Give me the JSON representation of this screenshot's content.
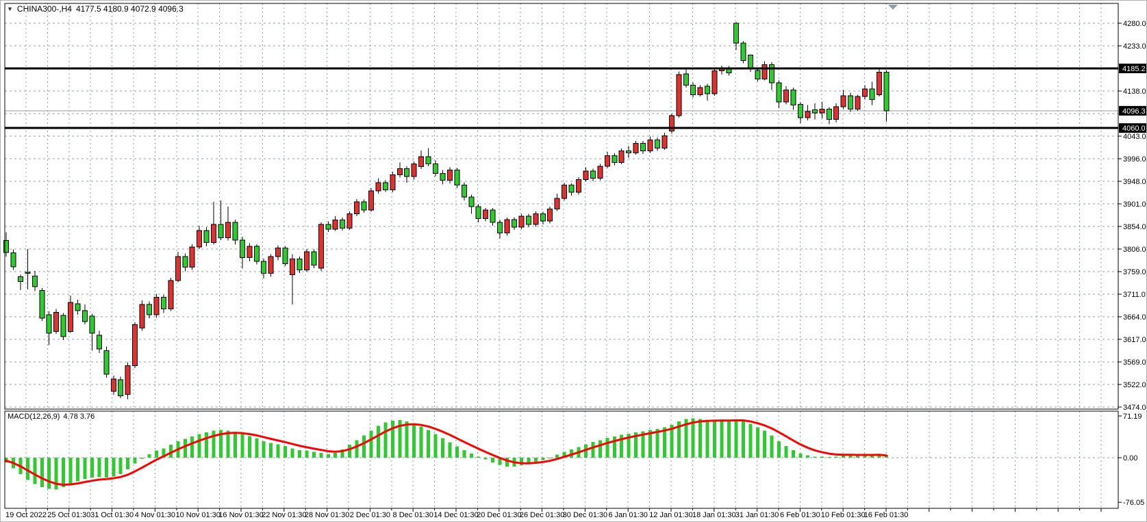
{
  "header": {
    "dropdown_icon": "▼",
    "symbol_period": "CHINA300-,H4",
    "ohlc": "4177.5 4180.9 4072.9 4096.3"
  },
  "macd_panel": {
    "label": "MACD(12,26,9)",
    "values": "4.78 3.76",
    "axis_labels": [
      "71.19",
      "0.00",
      "-76.05"
    ]
  },
  "price_axis": {
    "tick_labels": [
      [
        0,
        "4280.0"
      ],
      [
        1,
        "4233.0"
      ],
      [
        3,
        "4138.0"
      ],
      [
        5,
        "4043.0"
      ],
      [
        6,
        "3996.0"
      ],
      [
        7,
        "3948.0"
      ],
      [
        8,
        "3901.0"
      ],
      [
        9,
        "3854.0"
      ],
      [
        10,
        "3806.0"
      ],
      [
        11,
        "3759.0"
      ],
      [
        12,
        "3711.0"
      ],
      [
        13,
        "3664.0"
      ],
      [
        14,
        "3617.0"
      ],
      [
        15,
        "3569.0"
      ],
      [
        16,
        "3522.0"
      ],
      [
        17,
        "3474.0"
      ]
    ],
    "highlighted": [
      {
        "text": "4185.2",
        "price": 4185.2
      },
      {
        "text": "4096.3",
        "price": 4096.3
      },
      {
        "text": "4060.0",
        "price": 4060.0
      }
    ]
  },
  "time_axis": {
    "labels": [
      "19 Oct 2022",
      "25 Oct 01:30",
      "31 Oct 01:30",
      "4 Nov 01:30",
      "10 Nov 01:30",
      "16 Nov 01:30",
      "22 Nov 01:30",
      "28 Nov 01:30",
      "2 Dec 01:30",
      "8 Dec 01:30",
      "14 Dec 01:30",
      "20 Dec 01:30",
      "26 Dec 01:30",
      "30 Dec 01:30",
      "6 Jan 01:30",
      "12 Jan 01:30",
      "18 Jan 01:30",
      "31 Jan 01:30",
      "6 Feb 01:30",
      "10 Feb 01:30",
      "16 Feb 01:30"
    ]
  },
  "colors": {
    "bull_candle": "#e03131",
    "bear_candle": "#2ecb2e",
    "wick": "#000000",
    "grid": "#8c9cae",
    "signal_line": "#ff0000",
    "histogram": "#2ecb2e",
    "hline": "#000000",
    "current_price_line": "#9a9a9a",
    "label_box_bg": "#000000",
    "label_box_text": "#ffffff",
    "axis_text": "#000000",
    "panel_border": "#000000"
  },
  "chart_data": {
    "type": "candlestick+macd",
    "title": "CHINA300-,H4 4177.5 4180.9 4072.9 4096.3",
    "symbol": "CHINA300-",
    "timeframe": "H4",
    "note": "Chinese color convention: red body = up candle, green body = down candle",
    "price_axis_ticks": [
      4280.0,
      4233.0,
      4138.0,
      4043.0,
      3996.0,
      3948.0,
      3901.0,
      3854.0,
      3806.0,
      3759.0,
      3711.0,
      3664.0,
      3617.0,
      3569.0,
      3522.0,
      3474.0
    ],
    "horizontal_lines": [
      4185.2,
      4060.0
    ],
    "current_price": 4096.3,
    "last_candle_ohlc": [
      4177.5,
      4180.9,
      4072.9,
      4096.3
    ],
    "candles_ohlc": [
      [
        3824,
        3841,
        3790,
        3799
      ],
      [
        3798,
        3805,
        3762,
        3769
      ],
      [
        3748,
        3752,
        3720,
        3738
      ],
      [
        3757,
        3806,
        3721,
        3755
      ],
      [
        3749,
        3760,
        3718,
        3727
      ],
      [
        3719,
        3724,
        3655,
        3661
      ],
      [
        3668,
        3675,
        3604,
        3629
      ],
      [
        3633,
        3680,
        3628,
        3673
      ],
      [
        3667,
        3672,
        3615,
        3622
      ],
      [
        3633,
        3708,
        3630,
        3694
      ],
      [
        3691,
        3700,
        3668,
        3677
      ],
      [
        3677,
        3690,
        3648,
        3654
      ],
      [
        3665,
        3670,
        3593,
        3629
      ],
      [
        3625,
        3634,
        3588,
        3596
      ],
      [
        3593,
        3601,
        3536,
        3543
      ],
      [
        3507,
        3540,
        3500,
        3533
      ],
      [
        3532,
        3538,
        3493,
        3498
      ],
      [
        3501,
        3568,
        3491,
        3561
      ],
      [
        3561,
        3652,
        3556,
        3647
      ],
      [
        3640,
        3698,
        3634,
        3690
      ],
      [
        3690,
        3696,
        3660,
        3668
      ],
      [
        3668,
        3712,
        3662,
        3705
      ],
      [
        3705,
        3710,
        3672,
        3680
      ],
      [
        3680,
        3746,
        3676,
        3740
      ],
      [
        3740,
        3800,
        3736,
        3790
      ],
      [
        3790,
        3797,
        3759,
        3768
      ],
      [
        3768,
        3816,
        3762,
        3810
      ],
      [
        3810,
        3855,
        3806,
        3845
      ],
      [
        3845,
        3852,
        3812,
        3820
      ],
      [
        3820,
        3905,
        3815,
        3858
      ],
      [
        3858,
        3908,
        3825,
        3830
      ],
      [
        3830,
        3895,
        3824,
        3862
      ],
      [
        3862,
        3868,
        3815,
        3825
      ],
      [
        3825,
        3832,
        3765,
        3788
      ],
      [
        3788,
        3818,
        3780,
        3812
      ],
      [
        3812,
        3816,
        3774,
        3780
      ],
      [
        3780,
        3786,
        3744,
        3755
      ],
      [
        3755,
        3795,
        3748,
        3790
      ],
      [
        3790,
        3814,
        3782,
        3808
      ],
      [
        3808,
        3812,
        3770,
        3775
      ],
      [
        3752,
        3795,
        3690,
        3785
      ],
      [
        3785,
        3790,
        3756,
        3762
      ],
      [
        3762,
        3806,
        3758,
        3800
      ],
      [
        3800,
        3805,
        3766,
        3772
      ],
      [
        3766,
        3862,
        3760,
        3858
      ],
      [
        3858,
        3864,
        3842,
        3848
      ],
      [
        3848,
        3875,
        3844,
        3867
      ],
      [
        3867,
        3872,
        3845,
        3850
      ],
      [
        3850,
        3885,
        3846,
        3880
      ],
      [
        3880,
        3911,
        3875,
        3905
      ],
      [
        3905,
        3910,
        3882,
        3888
      ],
      [
        3888,
        3934,
        3884,
        3928
      ],
      [
        3928,
        3955,
        3922,
        3945
      ],
      [
        3945,
        3950,
        3926,
        3930
      ],
      [
        3930,
        3968,
        3925,
        3962
      ],
      [
        3962,
        3988,
        3956,
        3975
      ],
      [
        3975,
        3980,
        3945,
        3958
      ],
      [
        3958,
        3990,
        3952,
        3985
      ],
      [
        3979,
        4013,
        3974,
        4000
      ],
      [
        4000,
        4018,
        3980,
        3985
      ],
      [
        3985,
        3992,
        3958,
        3965
      ],
      [
        3965,
        3972,
        3942,
        3950
      ],
      [
        3950,
        3978,
        3944,
        3972
      ],
      [
        3972,
        3976,
        3934,
        3940
      ],
      [
        3940,
        3946,
        3908,
        3915
      ],
      [
        3915,
        3920,
        3880,
        3895
      ],
      [
        3895,
        3900,
        3862,
        3870
      ],
      [
        3870,
        3892,
        3864,
        3888
      ],
      [
        3888,
        3892,
        3855,
        3862
      ],
      [
        3862,
        3868,
        3828,
        3840
      ],
      [
        3840,
        3872,
        3834,
        3868
      ],
      [
        3868,
        3873,
        3846,
        3852
      ],
      [
        3852,
        3880,
        3848,
        3875
      ],
      [
        3875,
        3880,
        3852,
        3858
      ],
      [
        3858,
        3885,
        3853,
        3880
      ],
      [
        3880,
        3884,
        3858,
        3865
      ],
      [
        3865,
        3895,
        3860,
        3890
      ],
      [
        3890,
        3922,
        3886,
        3912
      ],
      [
        3912,
        3945,
        3908,
        3940
      ],
      [
        3940,
        3944,
        3918,
        3925
      ],
      [
        3925,
        3957,
        3920,
        3952
      ],
      [
        3952,
        3978,
        3948,
        3970
      ],
      [
        3970,
        3975,
        3948,
        3955
      ],
      [
        3955,
        3985,
        3950,
        3980
      ],
      [
        3980,
        4010,
        3976,
        4002
      ],
      [
        4002,
        4007,
        3982,
        3988
      ],
      [
        3988,
        4017,
        3984,
        4012
      ],
      [
        4012,
        4022,
        3998,
        4008
      ],
      [
        4008,
        4033,
        4004,
        4028
      ],
      [
        4028,
        4033,
        4006,
        4012
      ],
      [
        4012,
        4042,
        4008,
        4035
      ],
      [
        4035,
        4040,
        4012,
        4018
      ],
      [
        4018,
        4050,
        4014,
        4044
      ],
      [
        4054,
        4090,
        4048,
        4086
      ],
      [
        4086,
        4179,
        4082,
        4172
      ],
      [
        4174,
        4187,
        4145,
        4150
      ],
      [
        4150,
        4156,
        4124,
        4130
      ],
      [
        4130,
        4150,
        4126,
        4145
      ],
      [
        4148,
        4153,
        4118,
        4132
      ],
      [
        4132,
        4186,
        4128,
        4180
      ],
      [
        4180,
        4191,
        4172,
        4186
      ],
      [
        4186,
        4190,
        4170,
        4176
      ],
      [
        4280,
        4283,
        4224,
        4238
      ],
      [
        4238,
        4243,
        4196,
        4202
      ],
      [
        4213,
        4215,
        4178,
        4184
      ],
      [
        4181,
        4186,
        4158,
        4163
      ],
      [
        4163,
        4200,
        4160,
        4193
      ],
      [
        4193,
        4198,
        4140,
        4155
      ],
      [
        4155,
        4160,
        4102,
        4115
      ],
      [
        4115,
        4148,
        4110,
        4140
      ],
      [
        4140,
        4145,
        4098,
        4108
      ],
      [
        4110,
        4114,
        4070,
        4082
      ],
      [
        4082,
        4108,
        4076,
        4095
      ],
      [
        4098,
        4112,
        4078,
        4092
      ],
      [
        4092,
        4115,
        4080,
        4100
      ],
      [
        4100,
        4104,
        4068,
        4078
      ],
      [
        4078,
        4112,
        4072,
        4105
      ],
      [
        4105,
        4140,
        4100,
        4128
      ],
      [
        4128,
        4134,
        4094,
        4100
      ],
      [
        4100,
        4130,
        4096,
        4126
      ],
      [
        4126,
        4150,
        4120,
        4142
      ],
      [
        4142,
        4157,
        4108,
        4120
      ],
      [
        4130,
        4183,
        4126,
        4177
      ],
      [
        4177.5,
        4180.9,
        4072.9,
        4096.3
      ]
    ],
    "macd": {
      "params": "12,26,9",
      "current_main": 4.78,
      "current_signal": 3.76,
      "axis_range": [
        -76.05,
        71.19
      ],
      "histogram": [
        -8,
        -18,
        -28,
        -38,
        -45,
        -50,
        -53,
        -54,
        -50,
        -44,
        -40,
        -36,
        -34,
        -33,
        -34,
        -32,
        -28,
        -20,
        -10,
        -2,
        6,
        12,
        16,
        22,
        28,
        32,
        36,
        40,
        43,
        46,
        47,
        46,
        44,
        40,
        37,
        33,
        28,
        25,
        23,
        20,
        16,
        13,
        12,
        10,
        8,
        6,
        8,
        14,
        22,
        30,
        38,
        46,
        54,
        60,
        63,
        64,
        62,
        58,
        53,
        47,
        40,
        33,
        26,
        19,
        13,
        7,
        2,
        -3,
        -8,
        -12,
        -15,
        -15,
        -13,
        -10,
        -7,
        -4,
        0,
        5,
        10,
        14,
        18,
        23,
        27,
        30,
        34,
        36,
        39,
        41,
        43,
        45,
        47,
        49,
        52,
        56,
        62,
        66,
        67,
        66,
        65,
        64,
        64,
        63,
        65,
        63,
        58,
        52,
        46,
        38,
        28,
        20,
        13,
        7,
        4,
        2,
        2,
        1,
        2,
        4,
        5,
        4,
        5,
        4,
        6,
        4.78
      ],
      "signal": [
        -5.2,
        -9.0,
        -14.7,
        -21.7,
        -28.7,
        -35.1,
        -40.5,
        -44.5,
        -46.2,
        -45.5,
        -43.9,
        -41.5,
        -39.3,
        -37.4,
        -36.4,
        -35.1,
        -32.9,
        -29.1,
        -23.3,
        -16.9,
        -10.1,
        -3.4,
        2.4,
        8.3,
        14.2,
        19.5,
        24.5,
        29.1,
        33.3,
        37.1,
        40.1,
        41.9,
        42.5,
        41.8,
        40.3,
        38.1,
        35.1,
        32.1,
        29.3,
        26.5,
        23.4,
        20.3,
        17.8,
        15.5,
        13.2,
        11.1,
        10.1,
        11.3,
        14.5,
        19.2,
        24.8,
        31.2,
        38.0,
        44.6,
        50.1,
        54.3,
        56.6,
        57.0,
        55.8,
        53.2,
        49.2,
        44.4,
        38.9,
        32.9,
        26.9,
        21.0,
        15.3,
        9.8,
        4.5,
        -0.5,
        -4.8,
        -7.9,
        -9.4,
        -9.6,
        -8.8,
        -7.4,
        -5.2,
        -2.1,
        1.5,
        5.3,
        9.1,
        13.3,
        17.4,
        21.2,
        25.0,
        28.3,
        31.5,
        34.4,
        37.0,
        39.4,
        41.7,
        43.9,
        46.3,
        49.2,
        53.1,
        56.9,
        60.0,
        61.8,
        62.7,
        63.1,
        63.4,
        63.3,
        63.8,
        63.6,
        61.9,
        58.9,
        55.0,
        49.9,
        43.4,
        36.4,
        29.3,
        22.6,
        17.1,
        12.5,
        9.4,
        6.9,
        5.4,
        5.0,
        5.0,
        4.7,
        4.8,
        4.6,
        5.0,
        3.76
      ]
    }
  }
}
